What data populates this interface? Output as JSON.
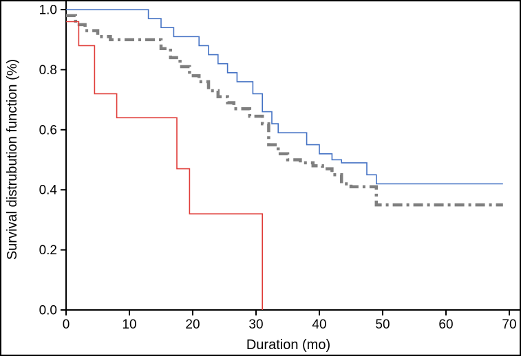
{
  "figure": {
    "background": "#ffffff",
    "border_color": "#000000"
  },
  "chart_data": {
    "type": "line",
    "subtype": "kaplan-meier-step",
    "title": "",
    "xlabel": "Duration (mo)",
    "ylabel": "Survival distrubution function (%)",
    "xlim": [
      0,
      70
    ],
    "ylim": [
      0.0,
      1.0
    ],
    "grid": false,
    "legend": "none",
    "x_ticks": [
      {
        "v": 0,
        "label": "0"
      },
      {
        "v": 10,
        "label": "10"
      },
      {
        "v": 20,
        "label": "20"
      },
      {
        "v": 30,
        "label": "30"
      },
      {
        "v": 40,
        "label": "40"
      },
      {
        "v": 50,
        "label": "50"
      },
      {
        "v": 60,
        "label": "60"
      },
      {
        "v": 70,
        "label": "70"
      }
    ],
    "y_ticks": [
      {
        "v": 1.0,
        "label": "1.0"
      },
      {
        "v": 0.8,
        "label": "0.8"
      },
      {
        "v": 0.6,
        "label": "0.6"
      },
      {
        "v": 0.4,
        "label": "0.4"
      },
      {
        "v": 0.2,
        "label": "0.2"
      },
      {
        "v": 0.0,
        "label": "0.0"
      }
    ],
    "series": [
      {
        "name": "gray-dash-dot",
        "color": "#7f7f7f",
        "width": 4.5,
        "dash": "14 6 4 6",
        "step_points": [
          [
            0,
            0.98
          ],
          [
            1.5,
            0.95
          ],
          [
            3,
            0.93
          ],
          [
            5,
            0.91
          ],
          [
            7,
            0.9
          ],
          [
            15,
            0.87
          ],
          [
            16.5,
            0.84
          ],
          [
            18,
            0.81
          ],
          [
            19.5,
            0.78
          ],
          [
            21,
            0.76
          ],
          [
            22.5,
            0.73
          ],
          [
            24,
            0.71
          ],
          [
            25.5,
            0.69
          ],
          [
            26.5,
            0.67
          ],
          [
            29,
            0.645
          ],
          [
            31,
            0.62
          ],
          [
            32,
            0.55
          ],
          [
            33.5,
            0.52
          ],
          [
            35,
            0.5
          ],
          [
            37,
            0.49
          ],
          [
            39,
            0.48
          ],
          [
            40.5,
            0.47
          ],
          [
            42,
            0.45
          ],
          [
            43.5,
            0.42
          ],
          [
            45,
            0.41
          ],
          [
            49,
            0.35
          ],
          [
            69,
            0.35
          ]
        ]
      },
      {
        "name": "blue-solid",
        "color": "#4472c4",
        "width": 1.6,
        "dash": "",
        "step_points": [
          [
            0,
            1.0
          ],
          [
            13,
            0.97
          ],
          [
            15,
            0.94
          ],
          [
            17,
            0.91
          ],
          [
            21,
            0.88
          ],
          [
            22.5,
            0.85
          ],
          [
            24,
            0.82
          ],
          [
            25.5,
            0.79
          ],
          [
            27,
            0.76
          ],
          [
            29.5,
            0.72
          ],
          [
            31,
            0.66
          ],
          [
            32.5,
            0.62
          ],
          [
            33.5,
            0.59
          ],
          [
            38,
            0.55
          ],
          [
            40,
            0.52
          ],
          [
            42,
            0.5
          ],
          [
            43.5,
            0.49
          ],
          [
            47.5,
            0.45
          ],
          [
            49,
            0.42
          ],
          [
            69,
            0.42
          ]
        ]
      },
      {
        "name": "red-solid",
        "color": "#e03c38",
        "width": 1.6,
        "dash": "",
        "step_points": [
          [
            0,
            0.96
          ],
          [
            2,
            0.88
          ],
          [
            4.5,
            0.72
          ],
          [
            8,
            0.64
          ],
          [
            17.5,
            0.47
          ],
          [
            19.5,
            0.32
          ],
          [
            31,
            0.0
          ]
        ]
      }
    ]
  }
}
